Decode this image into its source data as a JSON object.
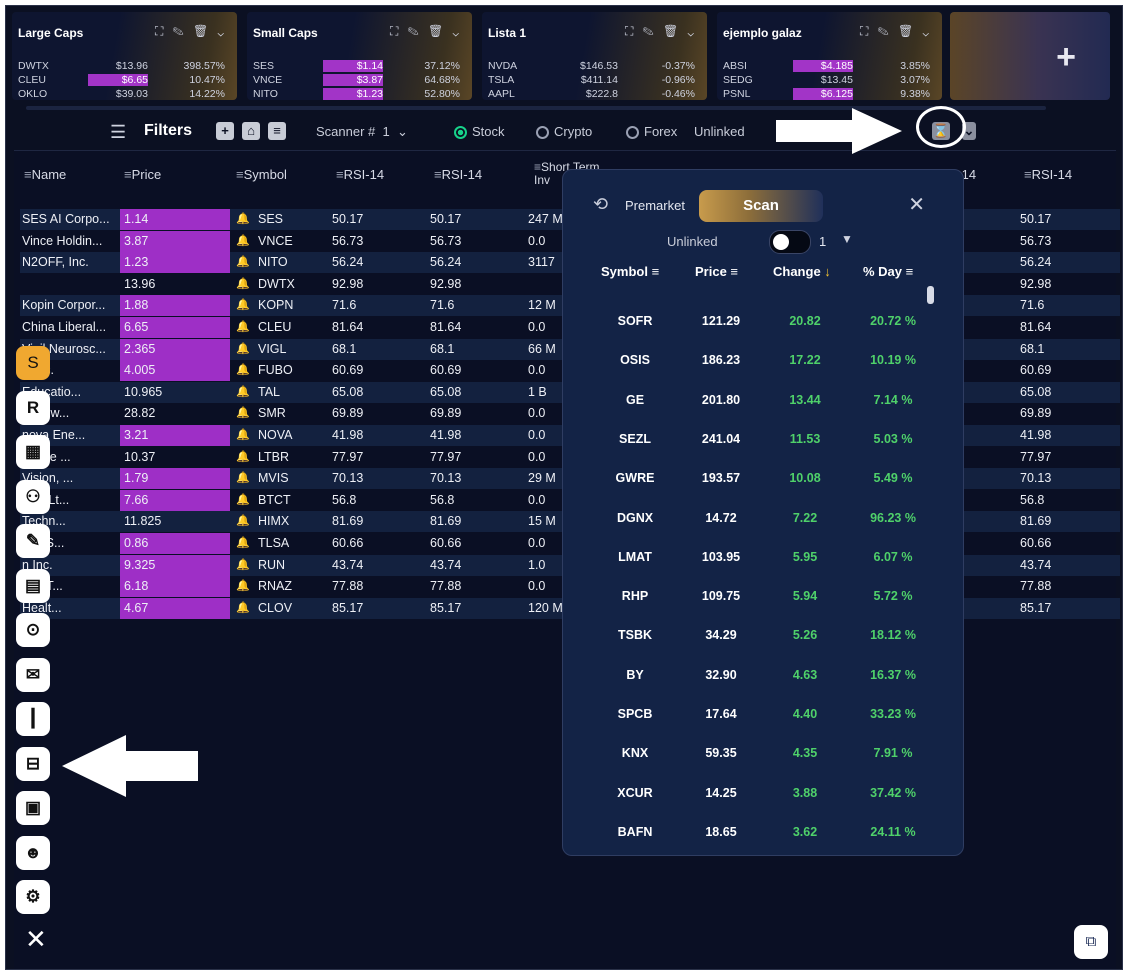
{
  "watchlists": [
    {
      "title": "Large Caps",
      "rows": [
        {
          "sym": "DWTX",
          "price": "$13.96",
          "pct": "398.57%",
          "hl": false
        },
        {
          "sym": "CLEU",
          "price": "$6.65",
          "pct": "10.47%",
          "hl": true
        },
        {
          "sym": "OKLO",
          "price": "$39.03",
          "pct": "14.22%",
          "hl": false
        }
      ]
    },
    {
      "title": "Small Caps",
      "rows": [
        {
          "sym": "SES",
          "price": "$1.14",
          "pct": "37.12%",
          "hl": true
        },
        {
          "sym": "VNCE",
          "price": "$3.87",
          "pct": "64.68%",
          "hl": true
        },
        {
          "sym": "NITO",
          "price": "$1.23",
          "pct": "52.80%",
          "hl": true
        }
      ]
    },
    {
      "title": "Lista 1",
      "rows": [
        {
          "sym": "NVDA",
          "price": "$146.53",
          "pct": "-0.37%",
          "hl": false
        },
        {
          "sym": "TSLA",
          "price": "$411.14",
          "pct": "-0.96%",
          "hl": false
        },
        {
          "sym": "AAPL",
          "price": "$222.8",
          "pct": "-0.46%",
          "hl": false
        }
      ]
    },
    {
      "title": "ejemplo galaz",
      "rows": [
        {
          "sym": "ABSI",
          "price": "$4.185",
          "pct": "3.85%",
          "hl": true
        },
        {
          "sym": "SEDG",
          "price": "$13.45",
          "pct": "3.07%",
          "hl": false
        },
        {
          "sym": "PSNL",
          "price": "$6.125",
          "pct": "9.38%",
          "hl": true
        }
      ]
    }
  ],
  "card_tools": "⛶ ✎ 🗑 ⌄",
  "add_label": "+",
  "filters": {
    "title": "Filters",
    "scanner_label": "Scanner #",
    "scanner_num": "1",
    "stock": "Stock",
    "crypto": "Crypto",
    "forex": "Forex",
    "unlinked": "Unlinked"
  },
  "table": {
    "headers": [
      "Name",
      "Price",
      "Symbol",
      "RSI-14",
      "RSI-14",
      "Short Term Inv",
      "14",
      "RSI-14"
    ],
    "rows": [
      {
        "name": "SES AI Corpo...",
        "price": "1.14",
        "hl": true,
        "sym": "SES",
        "r1": "50.17",
        "r2": "50.17",
        "st": "247 M",
        "rr": "50.17"
      },
      {
        "name": "Vince Holdin...",
        "price": "3.87",
        "hl": true,
        "sym": "VNCE",
        "r1": "56.73",
        "r2": "56.73",
        "st": "0.0",
        "rr": "56.73"
      },
      {
        "name": "N2OFF, Inc.",
        "price": "1.23",
        "hl": true,
        "sym": "NITO",
        "r1": "56.24",
        "r2": "56.24",
        "st": "3117",
        "rr": "56.24"
      },
      {
        "name": "",
        "price": "13.96",
        "hl": false,
        "sym": "DWTX",
        "r1": "92.98",
        "r2": "92.98",
        "st": "",
        "rr": "92.98"
      },
      {
        "name": "Kopin Corpor...",
        "price": "1.88",
        "hl": true,
        "sym": "KOPN",
        "r1": "71.6",
        "r2": "71.6",
        "st": "12 M",
        "rr": "71.6"
      },
      {
        "name": "China Liberal...",
        "price": "6.65",
        "hl": true,
        "sym": "CLEU",
        "r1": "81.64",
        "r2": "81.64",
        "st": "0.0",
        "rr": "81.64"
      },
      {
        "name": "Vigil Neurosc...",
        "price": "2.365",
        "hl": true,
        "sym": "VIGL",
        "r1": "68.1",
        "r2": "68.1",
        "st": "66 M",
        "rr": "68.1"
      },
      {
        "name": "    V Inc.",
        "price": "4.005",
        "hl": true,
        "sym": "FUBO",
        "r1": "60.69",
        "r2": "60.69",
        "st": "0.0",
        "rr": "60.69"
      },
      {
        "name": "    Educatio...",
        "price": "10.965",
        "hl": false,
        "sym": "TAL",
        "r1": "65.08",
        "r2": "65.08",
        "st": "1 B",
        "rr": "65.08"
      },
      {
        "name": "    le Pow...",
        "price": "28.82",
        "hl": false,
        "sym": "SMR",
        "r1": "69.89",
        "r2": "69.89",
        "st": "0.0",
        "rr": "69.89"
      },
      {
        "name": "    nova Ene...",
        "price": "3.21",
        "hl": true,
        "sym": "NOVA",
        "r1": "41.98",
        "r2": "41.98",
        "st": "0.0",
        "rr": "41.98"
      },
      {
        "name": "    bridge ...",
        "price": "10.37",
        "hl": false,
        "sym": "LTBR",
        "r1": "77.97",
        "r2": "77.97",
        "st": "0.0",
        "rr": "77.97"
      },
      {
        "name": "    Vision, ...",
        "price": "1.79",
        "hl": true,
        "sym": "MVIS",
        "r1": "70.13",
        "r2": "70.13",
        "st": "29 M",
        "rr": "70.13"
      },
      {
        "name": "    gital Lt...",
        "price": "7.66",
        "hl": true,
        "sym": "BTCT",
        "r1": "56.8",
        "r2": "56.8",
        "st": "0.0",
        "rr": "56.8"
      },
      {
        "name": "    Techn...",
        "price": "11.825",
        "hl": false,
        "sym": "HIMX",
        "r1": "81.69",
        "r2": "81.69",
        "st": "15 M",
        "rr": "81.69"
      },
      {
        "name": "    Life S...",
        "price": "0.86",
        "hl": true,
        "sym": "TLSA",
        "r1": "60.66",
        "r2": "60.66",
        "st": "0.0",
        "rr": "60.66"
      },
      {
        "name": "    n Inc.",
        "price": "9.325",
        "hl": true,
        "sym": "RUN",
        "r1": "43.74",
        "r2": "43.74",
        "st": "1.0",
        "rr": "43.74"
      },
      {
        "name": "    ode T...",
        "price": "6.18",
        "hl": true,
        "sym": "RNAZ",
        "r1": "77.88",
        "r2": "77.88",
        "st": "0.0",
        "rr": "77.88"
      },
      {
        "name": "    Healt...",
        "price": "4.67",
        "hl": true,
        "sym": "CLOV",
        "r1": "85.17",
        "r2": "85.17",
        "st": "120 M",
        "rr": "85.17"
      }
    ]
  },
  "sidebar": [
    {
      "icon": "S",
      "name": "sidebar-s-icon",
      "orange": true
    },
    {
      "icon": "R",
      "name": "sidebar-r-icon"
    },
    {
      "icon": "▦",
      "name": "dashboard-icon"
    },
    {
      "icon": "⚇",
      "name": "people-icon"
    },
    {
      "icon": "✎",
      "name": "notes-icon"
    },
    {
      "icon": "▤",
      "name": "calendar-icon"
    },
    {
      "icon": "⊙",
      "name": "coins-icon"
    },
    {
      "icon": "✉",
      "name": "chat-icon"
    },
    {
      "icon": "┃",
      "name": "candlestick-icon"
    },
    {
      "icon": "⊟",
      "name": "scanner-icon"
    },
    {
      "icon": "▣",
      "name": "monitor-chart-icon"
    },
    {
      "icon": "☻",
      "name": "user-icon"
    },
    {
      "icon": "⚙",
      "name": "settings-icon"
    }
  ],
  "close_label": "✕",
  "popup": {
    "premarket": "Premarket",
    "scan": "Scan",
    "close": "✕",
    "unlinked": "Unlinked",
    "num": "1",
    "headers": {
      "symbol": "Symbol",
      "price": "Price",
      "change": "Change",
      "day": "% Day"
    },
    "rows": [
      {
        "s": "SOFR",
        "p": "121.29",
        "c": "20.82",
        "d": "20.72 %"
      },
      {
        "s": "OSIS",
        "p": "186.23",
        "c": "17.22",
        "d": "10.19 %"
      },
      {
        "s": "GE",
        "p": "201.80",
        "c": "13.44",
        "d": "7.14 %"
      },
      {
        "s": "SEZL",
        "p": "241.04",
        "c": "11.53",
        "d": "5.03 %"
      },
      {
        "s": "GWRE",
        "p": "193.57",
        "c": "10.08",
        "d": "5.49 %"
      },
      {
        "s": "DGNX",
        "p": "14.72",
        "c": "7.22",
        "d": "96.23 %"
      },
      {
        "s": "LMAT",
        "p": "103.95",
        "c": "5.95",
        "d": "6.07 %"
      },
      {
        "s": "RHP",
        "p": "109.75",
        "c": "5.94",
        "d": "5.72 %"
      },
      {
        "s": "TSBK",
        "p": "34.29",
        "c": "5.26",
        "d": "18.12 %"
      },
      {
        "s": "BY",
        "p": "32.90",
        "c": "4.63",
        "d": "16.37 %"
      },
      {
        "s": "SPCB",
        "p": "17.64",
        "c": "4.40",
        "d": "33.23 %"
      },
      {
        "s": "KNX",
        "p": "59.35",
        "c": "4.35",
        "d": "7.91 %"
      },
      {
        "s": "XCUR",
        "p": "14.25",
        "c": "3.88",
        "d": "37.42 %"
      },
      {
        "s": "BAFN",
        "p": "18.65",
        "c": "3.62",
        "d": "24.11 %"
      }
    ]
  },
  "colors": {
    "highlight": "#9e2fc6",
    "gain": "#4fd16a",
    "accent": "#f0a830",
    "bg": "#0b1022"
  }
}
